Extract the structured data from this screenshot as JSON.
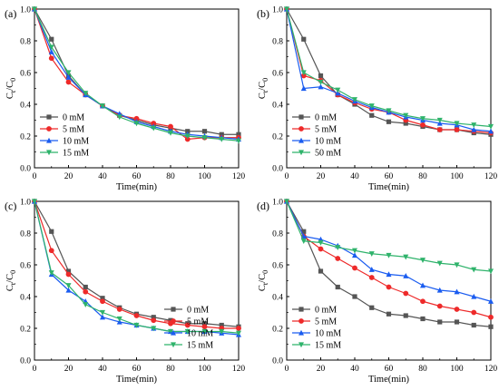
{
  "colors": {
    "series": [
      "#555555",
      "#ee2a2a",
      "#1a5cf0",
      "#2fb36b"
    ],
    "axis": "#000000"
  },
  "chart_data": [
    {
      "panel_label": "(a)",
      "type": "line",
      "xlabel": "Time(min)",
      "ylabel_main": "C",
      "ylabel_sub1": "t",
      "ylabel_mid": "/C",
      "ylabel_sub2": "0",
      "xlim": [
        0,
        120
      ],
      "ylim": [
        0,
        1.0
      ],
      "xticks": [
        "0",
        "20",
        "40",
        "60",
        "80",
        "100",
        "120"
      ],
      "yticks": [
        "0.0",
        "0.2",
        "0.4",
        "0.6",
        "0.8",
        "1.0"
      ],
      "legend_position": "bottom-left",
      "x": [
        0,
        10,
        20,
        30,
        40,
        50,
        60,
        70,
        80,
        90,
        100,
        110,
        120
      ],
      "series": [
        {
          "name": "0  mM",
          "marker": "square",
          "values": [
            1.0,
            0.81,
            0.58,
            0.46,
            0.39,
            0.33,
            0.3,
            0.27,
            0.25,
            0.23,
            0.23,
            0.21,
            0.21
          ]
        },
        {
          "name": "5  mM",
          "marker": "circle",
          "values": [
            1.0,
            0.69,
            0.54,
            0.46,
            0.39,
            0.33,
            0.31,
            0.28,
            0.26,
            0.18,
            0.19,
            0.19,
            0.19
          ]
        },
        {
          "name": "10 mM",
          "marker": "triangle-up",
          "values": [
            1.0,
            0.73,
            0.57,
            0.46,
            0.39,
            0.34,
            0.29,
            0.26,
            0.23,
            0.21,
            0.2,
            0.19,
            0.18
          ]
        },
        {
          "name": "15 mM",
          "marker": "triangle-down",
          "values": [
            1.0,
            0.76,
            0.6,
            0.47,
            0.39,
            0.32,
            0.28,
            0.25,
            0.22,
            0.2,
            0.19,
            0.18,
            0.17
          ]
        }
      ]
    },
    {
      "panel_label": "(b)",
      "type": "line",
      "xlabel": "Time(min)",
      "ylabel_main": "C",
      "ylabel_sub1": "t",
      "ylabel_mid": "/C",
      "ylabel_sub2": "0",
      "xlim": [
        0,
        120
      ],
      "ylim": [
        0,
        1.0
      ],
      "xticks": [
        "0",
        "20",
        "40",
        "60",
        "80",
        "100",
        "120"
      ],
      "yticks": [
        "0.0",
        "0.2",
        "0.4",
        "0.6",
        "0.8",
        "1.0"
      ],
      "legend_position": "bottom-left",
      "x": [
        0,
        10,
        20,
        30,
        40,
        50,
        60,
        70,
        80,
        90,
        100,
        110,
        120
      ],
      "series": [
        {
          "name": "0   mM",
          "marker": "square",
          "values": [
            1.0,
            0.81,
            0.58,
            0.46,
            0.4,
            0.33,
            0.29,
            0.28,
            0.26,
            0.24,
            0.24,
            0.22,
            0.21
          ]
        },
        {
          "name": "5   mM",
          "marker": "circle",
          "values": [
            1.0,
            0.58,
            0.55,
            0.46,
            0.41,
            0.37,
            0.35,
            0.3,
            0.27,
            0.24,
            0.24,
            0.23,
            0.22
          ]
        },
        {
          "name": "10 mM",
          "marker": "triangle-up",
          "values": [
            1.0,
            0.5,
            0.51,
            0.47,
            0.42,
            0.38,
            0.35,
            0.32,
            0.3,
            0.28,
            0.27,
            0.24,
            0.23
          ]
        },
        {
          "name": "50 mM",
          "marker": "triangle-down",
          "values": [
            1.0,
            0.6,
            0.54,
            0.49,
            0.43,
            0.39,
            0.36,
            0.33,
            0.31,
            0.3,
            0.28,
            0.27,
            0.26
          ]
        }
      ]
    },
    {
      "panel_label": "(c)",
      "type": "line",
      "xlabel": "Time(min)",
      "ylabel_main": "C",
      "ylabel_sub1": "t",
      "ylabel_mid": "/C",
      "ylabel_sub2": "0",
      "xlim": [
        0,
        120
      ],
      "ylim": [
        0,
        1.0
      ],
      "xticks": [
        "0",
        "20",
        "40",
        "60",
        "80",
        "100",
        "120"
      ],
      "yticks": [
        "0.0",
        "0.2",
        "0.4",
        "0.6",
        "0.8",
        "1.0"
      ],
      "legend_position": "bottom-right",
      "x": [
        0,
        10,
        20,
        30,
        40,
        50,
        60,
        70,
        80,
        90,
        100,
        110,
        120
      ],
      "series": [
        {
          "name": "0   mM",
          "marker": "square",
          "values": [
            1.0,
            0.81,
            0.56,
            0.46,
            0.39,
            0.33,
            0.29,
            0.27,
            0.25,
            0.23,
            0.23,
            0.22,
            0.21
          ]
        },
        {
          "name": "5   mM",
          "marker": "circle",
          "values": [
            1.0,
            0.69,
            0.54,
            0.43,
            0.37,
            0.32,
            0.28,
            0.25,
            0.23,
            0.22,
            0.21,
            0.2,
            0.2
          ]
        },
        {
          "name": "10 mM",
          "marker": "triangle-up",
          "values": [
            1.0,
            0.54,
            0.44,
            0.37,
            0.27,
            0.24,
            0.22,
            0.2,
            0.18,
            0.18,
            0.18,
            0.17,
            0.16
          ]
        },
        {
          "name": "15 mM",
          "marker": "triangle-down",
          "values": [
            1.0,
            0.55,
            0.47,
            0.35,
            0.3,
            0.26,
            0.22,
            0.2,
            0.18,
            0.18,
            0.18,
            0.18,
            0.17
          ]
        }
      ]
    },
    {
      "panel_label": "(d)",
      "type": "line",
      "xlabel": "Time(min)",
      "ylabel_main": "C",
      "ylabel_sub1": "t",
      "ylabel_mid": "/C",
      "ylabel_sub2": "0",
      "xlim": [
        0,
        120
      ],
      "ylim": [
        0,
        1.0
      ],
      "xticks": [
        "0",
        "20",
        "40",
        "60",
        "80",
        "100",
        "120"
      ],
      "yticks": [
        "0.0",
        "0.2",
        "0.4",
        "0.6",
        "0.8",
        "1.0"
      ],
      "legend_position": "bottom-left",
      "x": [
        0,
        10,
        20,
        30,
        40,
        50,
        60,
        70,
        80,
        90,
        100,
        110,
        120
      ],
      "series": [
        {
          "name": "0   mM",
          "marker": "square",
          "values": [
            1.0,
            0.81,
            0.56,
            0.46,
            0.4,
            0.33,
            0.29,
            0.28,
            0.26,
            0.24,
            0.24,
            0.22,
            0.21
          ]
        },
        {
          "name": "5   mM",
          "marker": "circle",
          "values": [
            1.0,
            0.78,
            0.7,
            0.64,
            0.58,
            0.52,
            0.46,
            0.42,
            0.37,
            0.34,
            0.32,
            0.3,
            0.27
          ]
        },
        {
          "name": "10 mM",
          "marker": "triangle-up",
          "values": [
            1.0,
            0.78,
            0.76,
            0.72,
            0.66,
            0.57,
            0.54,
            0.53,
            0.47,
            0.44,
            0.43,
            0.4,
            0.37
          ]
        },
        {
          "name": "15 mM",
          "marker": "triangle-down",
          "values": [
            1.0,
            0.75,
            0.74,
            0.71,
            0.69,
            0.67,
            0.66,
            0.65,
            0.63,
            0.61,
            0.6,
            0.57,
            0.56
          ]
        }
      ]
    }
  ]
}
